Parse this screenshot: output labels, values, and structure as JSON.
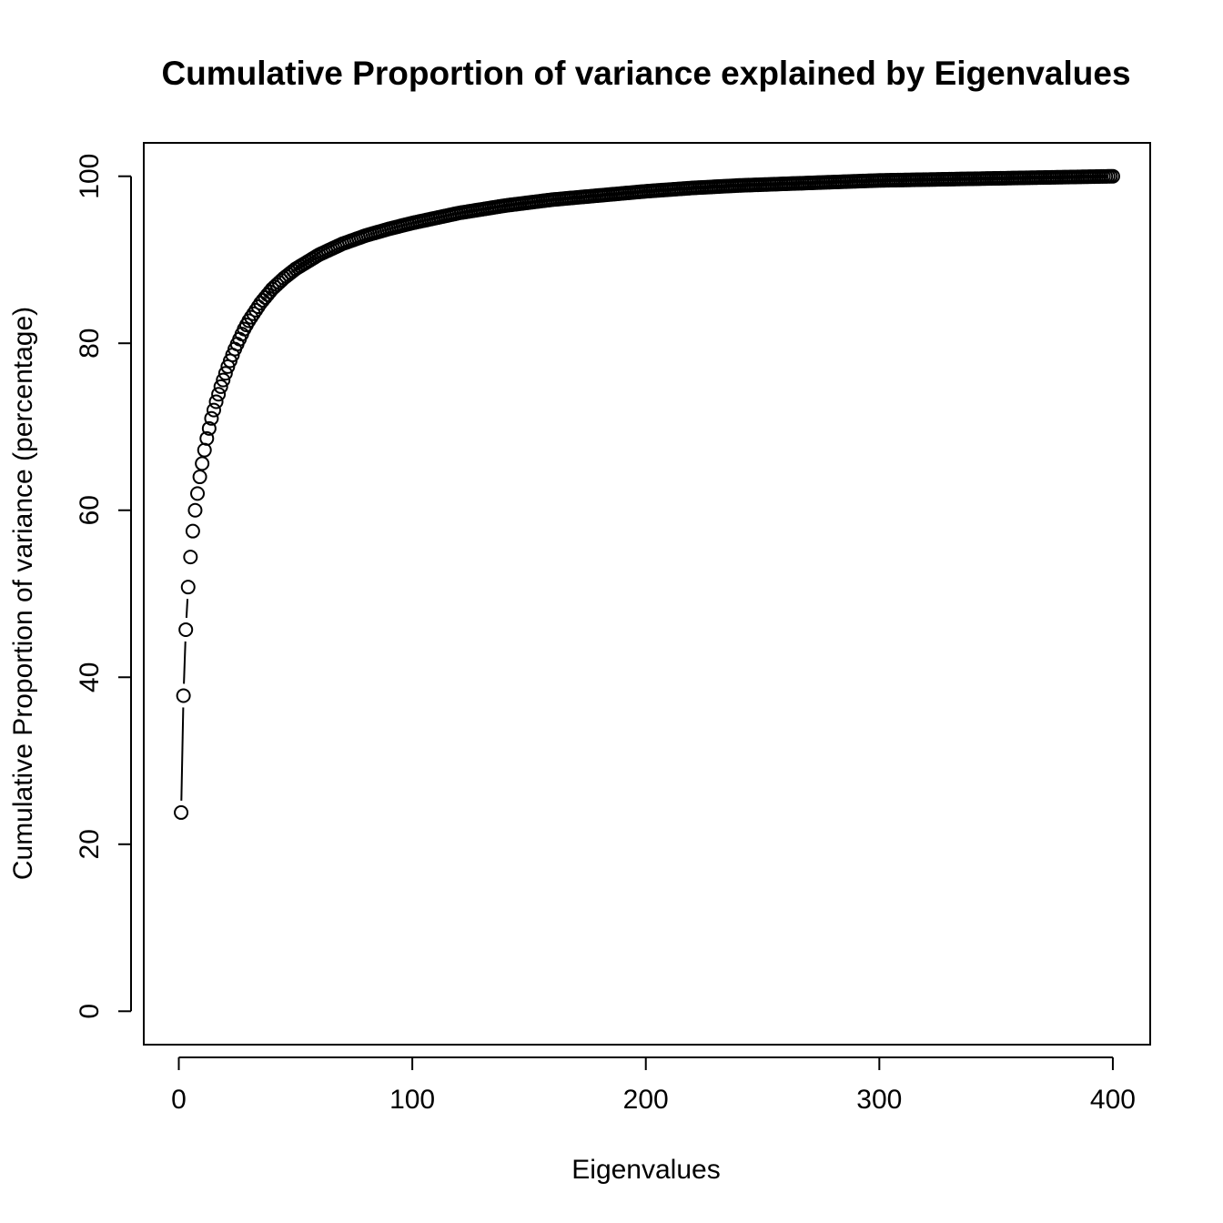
{
  "chart_data": {
    "type": "scatter",
    "title": "Cumulative Proportion of variance explained by Eigenvalues",
    "xlabel": "Eigenvalues",
    "ylabel": "Cumulative Proportion of variance (percentage)",
    "xlim": [
      -15,
      416
    ],
    "ylim": [
      -4,
      104
    ],
    "xticks": [
      0,
      100,
      200,
      300,
      400
    ],
    "yticks": [
      0,
      20,
      40,
      60,
      80,
      100
    ],
    "xtick_labels": [
      "0",
      "100",
      "200",
      "300",
      "400"
    ],
    "ytick_labels": [
      "0",
      "20",
      "40",
      "60",
      "80",
      "100"
    ],
    "grid": false,
    "marker": "open-circle",
    "connected_points": 4,
    "series": [
      {
        "x": [
          1,
          2,
          3,
          4,
          5,
          6,
          7,
          8,
          9,
          10,
          11,
          12,
          13,
          14,
          15,
          16,
          17,
          18,
          19,
          20,
          21,
          22,
          23,
          24,
          25,
          26,
          27,
          28,
          29,
          30,
          35,
          40,
          45,
          50,
          60,
          70,
          80,
          90,
          100,
          120,
          140,
          160,
          180,
          200,
          220,
          240,
          260,
          280,
          300,
          320,
          340,
          360,
          380,
          400
        ],
        "y": [
          23.8,
          37.8,
          45.7,
          50.8,
          54.4,
          57.5,
          60.0,
          62.0,
          64.0,
          65.6,
          67.2,
          68.6,
          69.8,
          71.0,
          72.0,
          73.0,
          73.9,
          74.8,
          75.6,
          76.4,
          77.2,
          77.9,
          78.6,
          79.3,
          79.9,
          80.5,
          81.1,
          81.7,
          82.2,
          82.7,
          84.8,
          86.5,
          87.8,
          88.9,
          90.6,
          91.9,
          92.9,
          93.7,
          94.4,
          95.6,
          96.5,
          97.2,
          97.7,
          98.2,
          98.6,
          98.9,
          99.1,
          99.3,
          99.5,
          99.6,
          99.7,
          99.8,
          99.9,
          100.0
        ]
      }
    ]
  }
}
